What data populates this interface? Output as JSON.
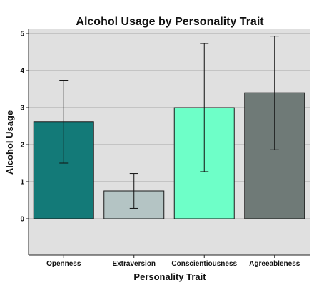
{
  "chart_data": {
    "type": "bar",
    "title": "Alcohol Usage  by Personality Trait",
    "xlabel": "Personality Trait",
    "ylabel": "Alcohol Usage",
    "categories": [
      "Openness",
      "Extraversion",
      "Conscientiousness",
      "Agreeableness"
    ],
    "values": [
      2.62,
      0.75,
      3.0,
      3.4
    ],
    "error_low": [
      1.5,
      0.28,
      1.27,
      1.86
    ],
    "error_high": [
      3.74,
      1.22,
      4.73,
      4.93
    ],
    "colors": [
      "#137a78",
      "#b4c4c4",
      "#6effc8",
      "#6f7a77"
    ],
    "yticks": [
      0,
      1,
      2,
      3,
      4,
      5
    ],
    "ylim": [
      -0.95,
      5.15
    ],
    "grid": true,
    "background": "#e0e0e0",
    "grid_color": "#a9a9a9"
  }
}
